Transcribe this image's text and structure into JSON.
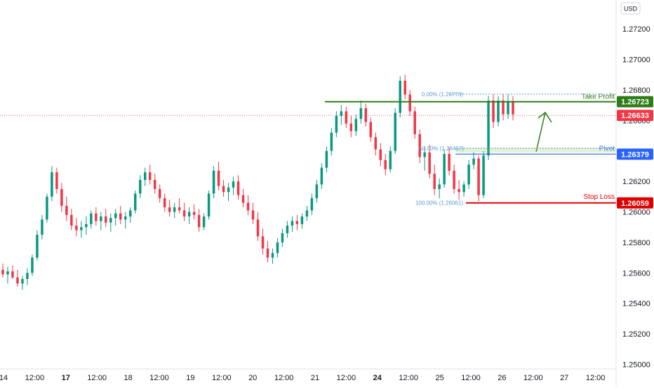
{
  "chart_data": {
    "type": "candlestick",
    "currency_label": "USD",
    "y_ticks": [
      "1.27200",
      "1.27000",
      "1.26800",
      "1.26600",
      "1.26400",
      "1.26200",
      "1.26000",
      "1.25800",
      "1.25600",
      "1.25400",
      "1.25200",
      "1.25000"
    ],
    "y_tick_values": [
      1.272,
      1.27,
      1.268,
      1.266,
      1.264,
      1.262,
      1.26,
      1.258,
      1.256,
      1.254,
      1.252,
      1.25
    ],
    "ylim": [
      1.2497,
      1.2739
    ],
    "x_ticks": [
      {
        "label": "14",
        "bold": false
      },
      {
        "label": "12:00",
        "bold": false
      },
      {
        "label": "17",
        "bold": true
      },
      {
        "label": "12:00",
        "bold": false
      },
      {
        "label": "18",
        "bold": false
      },
      {
        "label": "12:00",
        "bold": false
      },
      {
        "label": "19",
        "bold": false
      },
      {
        "label": "12:00",
        "bold": false
      },
      {
        "label": "20",
        "bold": false
      },
      {
        "label": "12:00",
        "bold": false
      },
      {
        "label": "21",
        "bold": false
      },
      {
        "label": "12:00",
        "bold": false
      },
      {
        "label": "24",
        "bold": true
      },
      {
        "label": "12:00",
        "bold": false
      },
      {
        "label": "25",
        "bold": false
      },
      {
        "label": "12:00",
        "bold": false
      },
      {
        "label": "26",
        "bold": false
      },
      {
        "label": "12:00",
        "bold": false
      },
      {
        "label": "27",
        "bold": false
      },
      {
        "label": "12:00",
        "bold": false
      }
    ],
    "grid": false,
    "levels": {
      "take_profit": {
        "label": "Take Profit",
        "value": 1.26723,
        "badge": "1.26723",
        "color": "#2e7d18"
      },
      "current_price": {
        "value": 1.26633,
        "badge": "1.26633",
        "color": "#f23645"
      },
      "pivot": {
        "label": "Pivot",
        "value": 1.26379,
        "badge": "1.26379",
        "color": "#2962ff"
      },
      "stop_loss": {
        "label": "Stop Loss",
        "value": 1.26059,
        "badge": "1.26059",
        "color": "#e00000"
      }
    },
    "fibonacci": [
      {
        "label": "0.00% (1.26773)",
        "value": 1.26773
      },
      {
        "label": "50.00% (1.26417)",
        "value": 1.26417
      },
      {
        "label": "100.00% (1.26061)",
        "value": 1.26061
      }
    ],
    "colors": {
      "up": "#089981",
      "down": "#f23645",
      "fib": "#5b9bd5"
    },
    "candles": [
      [
        1.2562,
        1.2566,
        1.2557,
        1.2559
      ],
      [
        1.2559,
        1.2564,
        1.2553,
        1.2561
      ],
      [
        1.2561,
        1.2565,
        1.2556,
        1.2557
      ],
      [
        1.2557,
        1.2562,
        1.2551,
        1.2553
      ],
      [
        1.2553,
        1.2558,
        1.2549,
        1.2556
      ],
      [
        1.2556,
        1.2563,
        1.2552,
        1.256
      ],
      [
        1.256,
        1.2572,
        1.2558,
        1.257
      ],
      [
        1.257,
        1.2588,
        1.2568,
        1.2585
      ],
      [
        1.2585,
        1.2598,
        1.2582,
        1.2595
      ],
      [
        1.2595,
        1.2612,
        1.2593,
        1.261
      ],
      [
        1.261,
        1.263,
        1.2607,
        1.2626
      ],
      [
        1.2626,
        1.2629,
        1.2612,
        1.2615
      ],
      [
        1.2615,
        1.2619,
        1.26,
        1.2604
      ],
      [
        1.2604,
        1.261,
        1.2594,
        1.2598
      ],
      [
        1.2598,
        1.2602,
        1.2588,
        1.2591
      ],
      [
        1.2591,
        1.2596,
        1.2584,
        1.2588
      ],
      [
        1.2588,
        1.2594,
        1.2583,
        1.259
      ],
      [
        1.259,
        1.2597,
        1.2585,
        1.2592
      ],
      [
        1.2592,
        1.2601,
        1.2589,
        1.2599
      ],
      [
        1.2599,
        1.2603,
        1.2591,
        1.2594
      ],
      [
        1.2594,
        1.26,
        1.2588,
        1.2597
      ],
      [
        1.2597,
        1.2602,
        1.259,
        1.2593
      ],
      [
        1.2593,
        1.2599,
        1.2587,
        1.2596
      ],
      [
        1.2596,
        1.2602,
        1.2591,
        1.2599
      ],
      [
        1.2599,
        1.2604,
        1.2592,
        1.2595
      ],
      [
        1.2595,
        1.26,
        1.2589,
        1.2597
      ],
      [
        1.2597,
        1.2603,
        1.2593,
        1.2601
      ],
      [
        1.2601,
        1.2614,
        1.2599,
        1.2612
      ],
      [
        1.2612,
        1.2624,
        1.2609,
        1.2621
      ],
      [
        1.2621,
        1.2629,
        1.2617,
        1.2626
      ],
      [
        1.2626,
        1.2631,
        1.2618,
        1.2621
      ],
      [
        1.2621,
        1.2625,
        1.2612,
        1.2615
      ],
      [
        1.2615,
        1.2618,
        1.2606,
        1.2609
      ],
      [
        1.2609,
        1.2612,
        1.26,
        1.2603
      ],
      [
        1.2603,
        1.2608,
        1.2597,
        1.26
      ],
      [
        1.26,
        1.2606,
        1.2596,
        1.2603
      ],
      [
        1.2603,
        1.2609,
        1.2599,
        1.2601
      ],
      [
        1.2601,
        1.2606,
        1.2594,
        1.2597
      ],
      [
        1.2597,
        1.2603,
        1.2592,
        1.26
      ],
      [
        1.26,
        1.2605,
        1.2595,
        1.2598
      ],
      [
        1.2598,
        1.2602,
        1.2587,
        1.259
      ],
      [
        1.259,
        1.2599,
        1.2588,
        1.2597
      ],
      [
        1.2597,
        1.2614,
        1.2595,
        1.2612
      ],
      [
        1.2612,
        1.263,
        1.2609,
        1.2627
      ],
      [
        1.2627,
        1.2633,
        1.2614,
        1.2617
      ],
      [
        1.2617,
        1.2621,
        1.261,
        1.2613
      ],
      [
        1.2613,
        1.2619,
        1.2607,
        1.2616
      ],
      [
        1.2616,
        1.2623,
        1.2611,
        1.262
      ],
      [
        1.262,
        1.2624,
        1.2608,
        1.2611
      ],
      [
        1.2611,
        1.2615,
        1.2603,
        1.2606
      ],
      [
        1.2606,
        1.2611,
        1.2598,
        1.2601
      ],
      [
        1.2601,
        1.2606,
        1.2592,
        1.2595
      ],
      [
        1.2595,
        1.26,
        1.2581,
        1.2584
      ],
      [
        1.2584,
        1.2589,
        1.2572,
        1.2576
      ],
      [
        1.2576,
        1.2581,
        1.2567,
        1.257
      ],
      [
        1.257,
        1.2576,
        1.2566,
        1.2573
      ],
      [
        1.2573,
        1.2583,
        1.257,
        1.258
      ],
      [
        1.258,
        1.2589,
        1.2577,
        1.2586
      ],
      [
        1.2586,
        1.2594,
        1.2583,
        1.2591
      ],
      [
        1.2591,
        1.2597,
        1.2587,
        1.2594
      ],
      [
        1.2594,
        1.2598,
        1.2588,
        1.2592
      ],
      [
        1.2592,
        1.2599,
        1.2589,
        1.2597
      ],
      [
        1.2597,
        1.2604,
        1.2594,
        1.2601
      ],
      [
        1.2601,
        1.2612,
        1.2598,
        1.2609
      ],
      [
        1.2609,
        1.2621,
        1.2606,
        1.2618
      ],
      [
        1.2618,
        1.2632,
        1.2615,
        1.2629
      ],
      [
        1.2629,
        1.2643,
        1.2626,
        1.264
      ],
      [
        1.264,
        1.2655,
        1.2637,
        1.2652
      ],
      [
        1.2652,
        1.2666,
        1.2649,
        1.2663
      ],
      [
        1.2663,
        1.267,
        1.2657,
        1.2666
      ],
      [
        1.2666,
        1.2669,
        1.2655,
        1.2658
      ],
      [
        1.2658,
        1.2663,
        1.2649,
        1.2653
      ],
      [
        1.2653,
        1.2664,
        1.265,
        1.2661
      ],
      [
        1.2661,
        1.2673,
        1.2658,
        1.2668
      ],
      [
        1.2668,
        1.2671,
        1.2656,
        1.2659
      ],
      [
        1.2659,
        1.2662,
        1.2646,
        1.2649
      ],
      [
        1.2649,
        1.2652,
        1.2637,
        1.2641
      ],
      [
        1.2641,
        1.2645,
        1.263,
        1.2634
      ],
      [
        1.2634,
        1.2638,
        1.2624,
        1.2628
      ],
      [
        1.2628,
        1.2643,
        1.2626,
        1.264
      ],
      [
        1.264,
        1.2668,
        1.2638,
        1.2665
      ],
      [
        1.2665,
        1.2689,
        1.2662,
        1.2686
      ],
      [
        1.2686,
        1.269,
        1.2674,
        1.2677
      ],
      [
        1.2677,
        1.268,
        1.2663,
        1.2666
      ],
      [
        1.2666,
        1.2669,
        1.2648,
        1.2651
      ],
      [
        1.2651,
        1.2654,
        1.2632,
        1.2636
      ],
      [
        1.2636,
        1.2643,
        1.2627,
        1.2639
      ],
      [
        1.2639,
        1.2644,
        1.2622,
        1.2625
      ],
      [
        1.2625,
        1.2631,
        1.2611,
        1.2615
      ],
      [
        1.2615,
        1.2622,
        1.2609,
        1.2618
      ],
      [
        1.2618,
        1.2641,
        1.2616,
        1.2638
      ],
      [
        1.2638,
        1.2642,
        1.2624,
        1.2627
      ],
      [
        1.2627,
        1.2631,
        1.2612,
        1.2615
      ],
      [
        1.2615,
        1.2621,
        1.2608,
        1.2613
      ],
      [
        1.2613,
        1.262,
        1.261,
        1.2618
      ],
      [
        1.2618,
        1.2634,
        1.2615,
        1.2631
      ],
      [
        1.2631,
        1.2639,
        1.2628,
        1.2635
      ],
      [
        1.2635,
        1.2637,
        1.2607,
        1.2611
      ],
      [
        1.2611,
        1.264,
        1.2609,
        1.2637
      ],
      [
        1.2637,
        1.2676,
        1.2634,
        1.2673
      ],
      [
        1.2673,
        1.2677,
        1.2655,
        1.2659
      ],
      [
        1.2659,
        1.2676,
        1.2656,
        1.2673
      ],
      [
        1.2673,
        1.2677,
        1.266,
        1.2664
      ],
      [
        1.2664,
        1.2677,
        1.2661,
        1.2672
      ],
      [
        1.2672,
        1.2676,
        1.266,
        1.2664
      ]
    ]
  }
}
